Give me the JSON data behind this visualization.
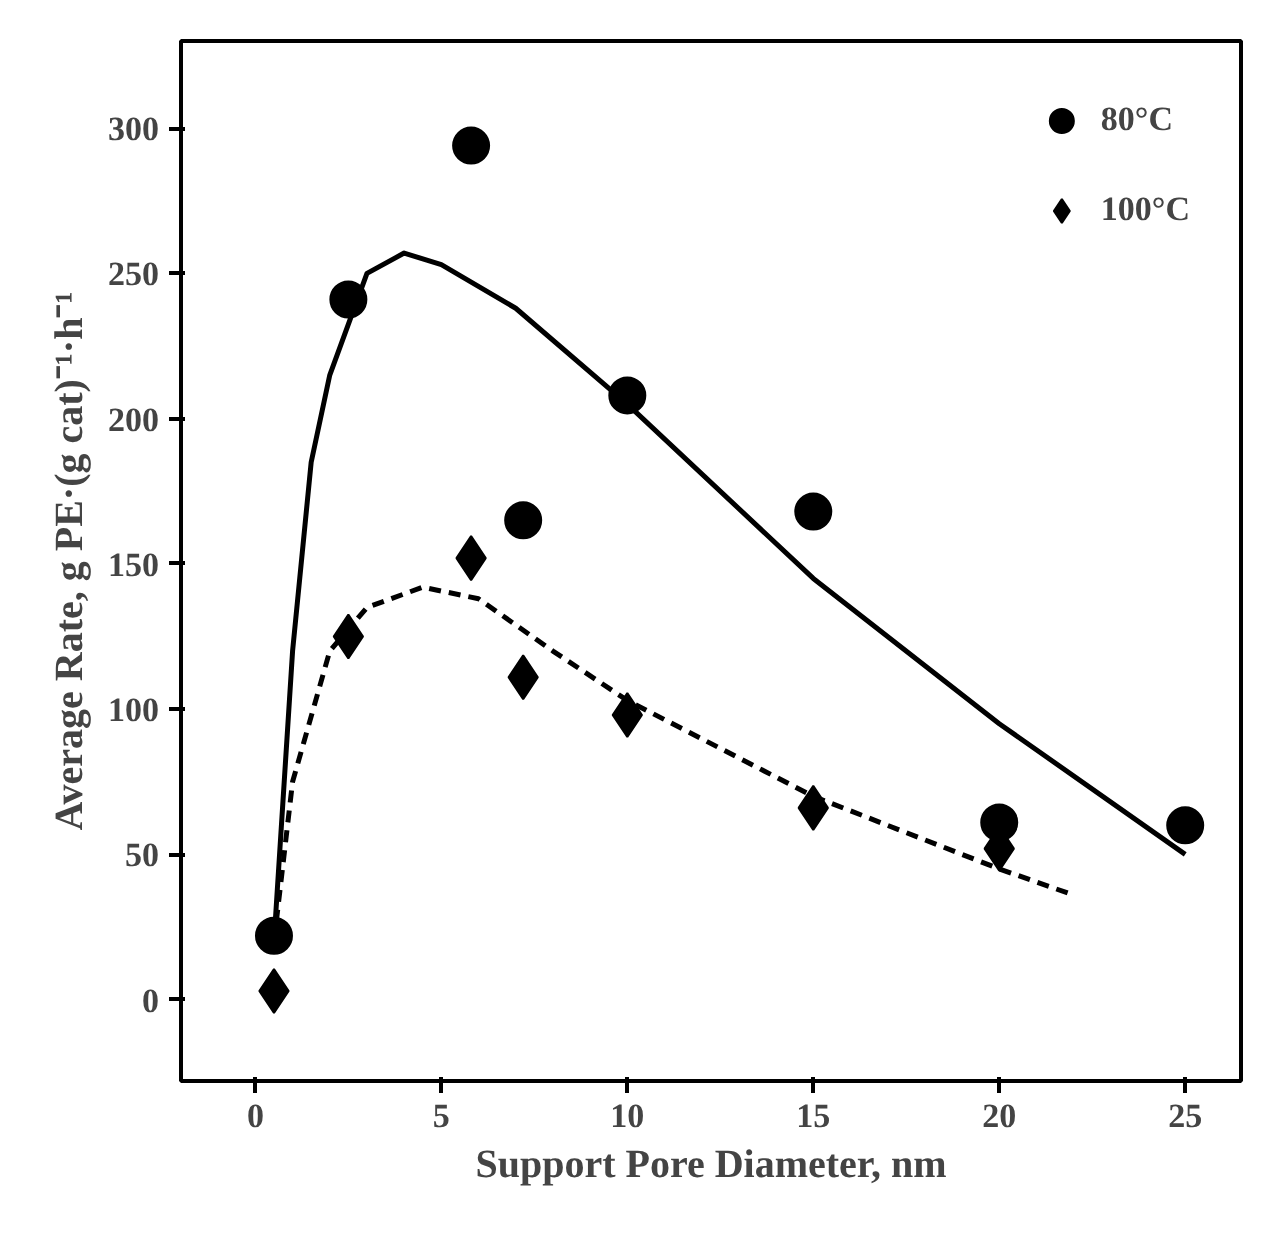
{
  "chart_data": {
    "type": "scatter",
    "xlabel": "Support Pore Diameter, nm",
    "ylabel": "Average Rate, g PE·(g cat)⁻¹·h⁻¹",
    "xlim": [
      -2,
      26.5
    ],
    "ylim": [
      -28,
      330
    ],
    "xticks": [
      0,
      5,
      10,
      15,
      20,
      25
    ],
    "yticks": [
      0,
      50,
      100,
      150,
      200,
      250,
      300
    ],
    "grid": false,
    "legend": "top right",
    "series": [
      {
        "name": "80°C",
        "marker": "circle",
        "color": "#000000",
        "x": [
          0.5,
          2.5,
          5.8,
          7.2,
          10,
          15,
          20,
          25
        ],
        "values": [
          22,
          241,
          294,
          165,
          208,
          168,
          61,
          60
        ]
      },
      {
        "name": "100°C",
        "marker": "diamond",
        "color": "#000000",
        "x": [
          0.5,
          2.5,
          5.8,
          7.2,
          10,
          15,
          20
        ],
        "values": [
          3,
          125,
          152,
          111,
          98,
          66,
          52
        ]
      },
      {
        "type": "line",
        "line_style": "solid",
        "color": "#000000",
        "x": [
          0.5,
          1,
          1.5,
          2,
          3,
          4,
          5,
          7,
          10,
          15,
          20,
          25
        ],
        "values": [
          20,
          120,
          185,
          215,
          250,
          257,
          253,
          238,
          205,
          145,
          95,
          50
        ]
      },
      {
        "type": "line",
        "line_style": "dashed",
        "color": "#000000",
        "x": [
          0.5,
          1,
          2,
          3,
          4.5,
          6,
          8,
          10,
          15,
          20,
          22
        ],
        "values": [
          20,
          75,
          120,
          135,
          142,
          138,
          120,
          103,
          70,
          45,
          36
        ]
      }
    ]
  }
}
